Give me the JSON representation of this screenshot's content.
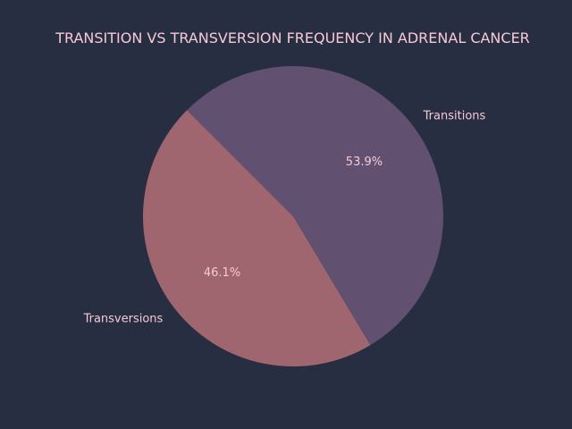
{
  "chart_data": {
    "type": "pie",
    "title": "TRANSITION VS TRANSVERSION FREQUENCY IN ADRENAL CANCER",
    "slices": [
      {
        "label": "Transversions",
        "value": 46.1,
        "pct_label": "46.1%",
        "color": "#a0666f"
      },
      {
        "label": "Transitions",
        "value": 53.9,
        "pct_label": "53.9%",
        "color": "#615070"
      }
    ],
    "start_angle_deg": 135,
    "counterclockwise": true,
    "legend": "none"
  },
  "colors": {
    "background": "#272e42",
    "text": "#f6c9d6"
  }
}
